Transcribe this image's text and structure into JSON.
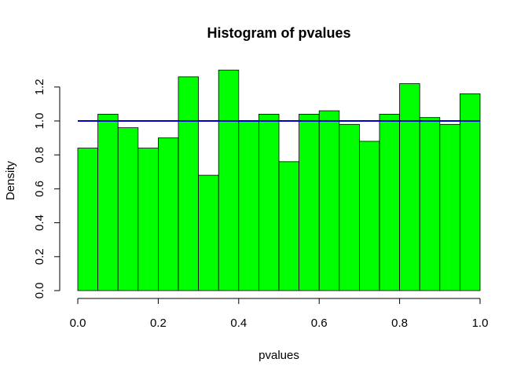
{
  "chart_data": {
    "type": "bar",
    "title": "Histogram of pvalues",
    "xlabel": "pvalues",
    "ylabel": "Density",
    "bin_edges": [
      0.0,
      0.05,
      0.1,
      0.15,
      0.2,
      0.25,
      0.3,
      0.35,
      0.4,
      0.45,
      0.5,
      0.55,
      0.6,
      0.65,
      0.7,
      0.75,
      0.8,
      0.85,
      0.9,
      0.95,
      1.0
    ],
    "values": [
      0.84,
      1.04,
      0.96,
      0.84,
      0.9,
      1.26,
      0.68,
      1.3,
      1.0,
      1.04,
      0.76,
      1.04,
      1.06,
      0.98,
      0.88,
      1.04,
      1.22,
      1.02,
      0.98,
      1.16
    ],
    "reference_line": {
      "y": 1.0,
      "color": "#0000cd"
    },
    "bar_color": "#00ff00",
    "xlim": [
      0.0,
      1.0
    ],
    "ylim": [
      0.0,
      1.3
    ],
    "x_ticks": [
      0.0,
      0.2,
      0.4,
      0.6,
      0.8,
      1.0
    ],
    "x_tick_labels": [
      "0.0",
      "0.2",
      "0.4",
      "0.6",
      "0.8",
      "1.0"
    ],
    "y_ticks": [
      0.0,
      0.2,
      0.4,
      0.6,
      0.8,
      1.0,
      1.2
    ],
    "y_tick_labels": [
      "0.0",
      "0.2",
      "0.4",
      "0.6",
      "0.8",
      "1.0",
      "1.2"
    ],
    "grid": false
  }
}
